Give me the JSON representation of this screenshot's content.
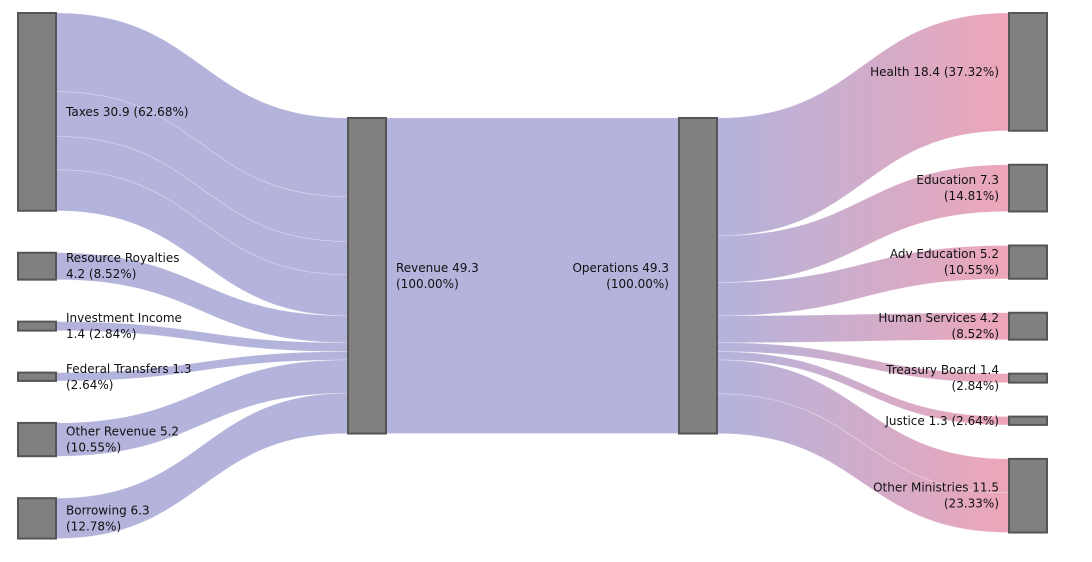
{
  "chart_data": {
    "type": "sankey",
    "colors": {
      "revenue_flow": "#b3b3dc",
      "expense_flow_end": "#eda6b9",
      "node_fill": "#808080",
      "node_stroke": "#555555"
    },
    "nodes": [
      {
        "id": "taxes",
        "column": 0,
        "value": 30.9,
        "label_lines": [
          "Taxes 30.9 (62.68%)"
        ]
      },
      {
        "id": "royalties",
        "column": 0,
        "value": 4.2,
        "label_lines": [
          "Resource Royalties",
          "4.2 (8.52%)"
        ]
      },
      {
        "id": "investment",
        "column": 0,
        "value": 1.4,
        "label_lines": [
          "Investment Income",
          "1.4 (2.84%)"
        ]
      },
      {
        "id": "federal",
        "column": 0,
        "value": 1.3,
        "label_lines": [
          "Federal Transfers 1.3",
          "(2.64%)"
        ]
      },
      {
        "id": "other_revenue",
        "column": 0,
        "value": 5.2,
        "label_lines": [
          "Other Revenue 5.2",
          "(10.55%)"
        ]
      },
      {
        "id": "borrowing",
        "column": 0,
        "value": 6.3,
        "label_lines": [
          "Borrowing 6.3",
          "(12.78%)"
        ]
      },
      {
        "id": "revenue",
        "column": 1,
        "value": 49.3,
        "label_lines": [
          "Revenue 49.3",
          "(100.00%)"
        ]
      },
      {
        "id": "operations",
        "column": 2,
        "value": 49.3,
        "label_lines": [
          "Operations 49.3",
          "(100.00%)"
        ]
      },
      {
        "id": "health",
        "column": 3,
        "value": 18.4,
        "label_lines": [
          "Health 18.4 (37.32%)"
        ]
      },
      {
        "id": "education",
        "column": 3,
        "value": 7.3,
        "label_lines": [
          "Education 7.3",
          "(14.81%)"
        ]
      },
      {
        "id": "adv_education",
        "column": 3,
        "value": 5.2,
        "label_lines": [
          "Adv Education 5.2",
          "(10.55%)"
        ]
      },
      {
        "id": "human_services",
        "column": 3,
        "value": 4.2,
        "label_lines": [
          "Human Services 4.2",
          "(8.52%)"
        ]
      },
      {
        "id": "treasury",
        "column": 3,
        "value": 1.4,
        "label_lines": [
          "Treasury Board 1.4",
          "(2.84%)"
        ]
      },
      {
        "id": "justice",
        "column": 3,
        "value": 1.3,
        "label_lines": [
          "Justice 1.3 (2.64%)"
        ]
      },
      {
        "id": "other_ministries",
        "column": 3,
        "value": 11.5,
        "label_lines": [
          "Other Ministries 11.5",
          "(23.33%)"
        ]
      }
    ],
    "links": [
      {
        "source": "taxes",
        "target": "revenue",
        "value": 12.3
      },
      {
        "source": "taxes",
        "target": "revenue",
        "value": 7.0
      },
      {
        "source": "taxes",
        "target": "revenue",
        "value": 5.2
      },
      {
        "source": "taxes",
        "target": "revenue",
        "value": 6.4
      },
      {
        "source": "royalties",
        "target": "revenue",
        "value": 4.2
      },
      {
        "source": "investment",
        "target": "revenue",
        "value": 1.4
      },
      {
        "source": "federal",
        "target": "revenue",
        "value": 1.3
      },
      {
        "source": "other_revenue",
        "target": "revenue",
        "value": 5.2
      },
      {
        "source": "borrowing",
        "target": "revenue",
        "value": 6.3
      },
      {
        "source": "revenue",
        "target": "operations",
        "value": 49.3
      },
      {
        "source": "operations",
        "target": "health",
        "value": 18.4
      },
      {
        "source": "operations",
        "target": "education",
        "value": 7.3
      },
      {
        "source": "operations",
        "target": "adv_education",
        "value": 5.2
      },
      {
        "source": "operations",
        "target": "human_services",
        "value": 4.2
      },
      {
        "source": "operations",
        "target": "treasury",
        "value": 1.4
      },
      {
        "source": "operations",
        "target": "justice",
        "value": 1.3
      },
      {
        "source": "operations",
        "target": "other_ministries",
        "value": 5.3
      },
      {
        "source": "operations",
        "target": "other_ministries",
        "value": 6.2
      }
    ]
  }
}
